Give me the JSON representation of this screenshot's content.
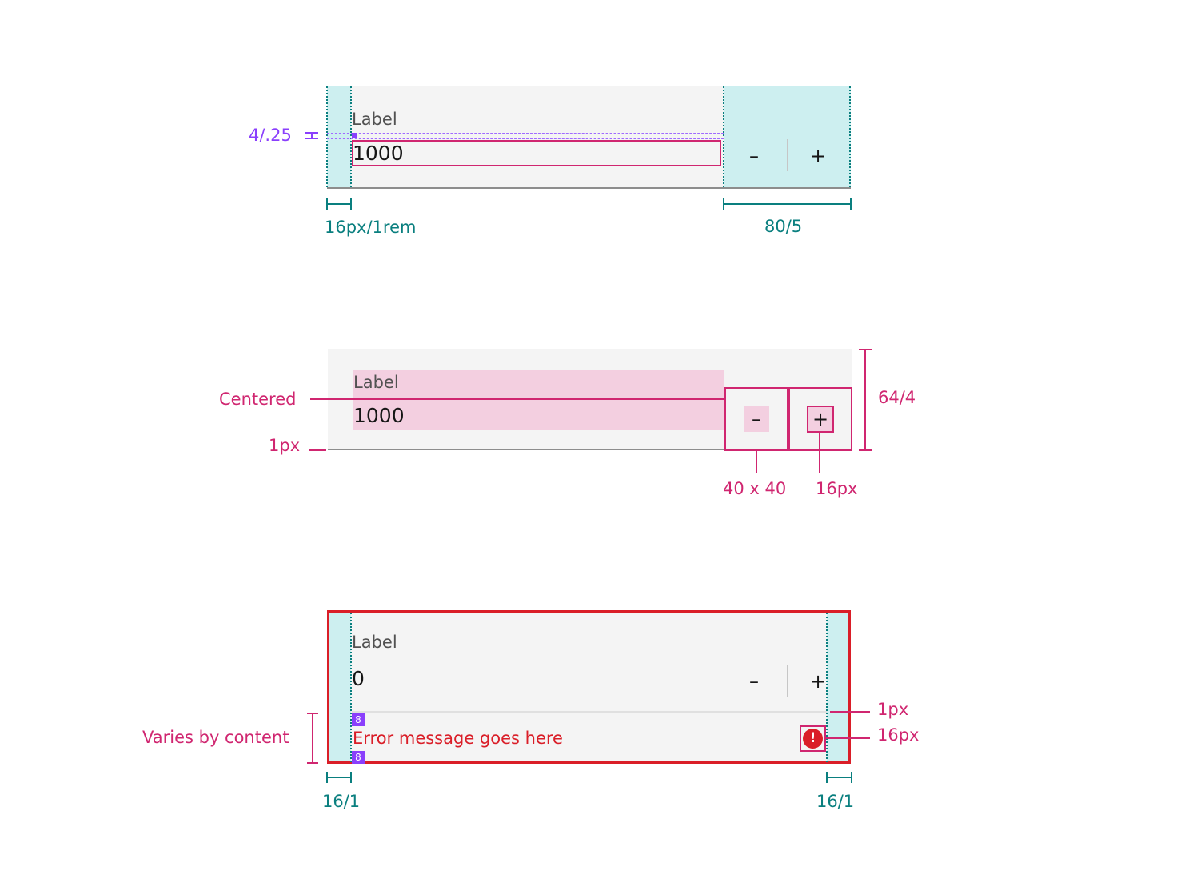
{
  "example1": {
    "label": "Label",
    "value": "1000",
    "decrement_symbol": "–",
    "increment_symbol": "+",
    "spacing_annotation": "4/.25",
    "padding_annotation": "16px/1rem",
    "buttons_width_annotation": "80/5"
  },
  "example2": {
    "label": "Label",
    "value": "1000",
    "decrement_symbol": "–",
    "increment_symbol": "+",
    "centered_annotation": "Centered",
    "border_annotation": "1px",
    "height_annotation": "64/4",
    "button_size_annotation": "40 x 40",
    "icon_size_annotation": "16px"
  },
  "example3": {
    "label": "Label",
    "value": "0",
    "decrement_symbol": "–",
    "increment_symbol": "+",
    "error_message": "Error message goes here",
    "error_icon_symbol": "!",
    "spacing_badge_top": "8",
    "spacing_badge_bottom": "8",
    "varies_annotation": "Varies by content",
    "divider_annotation": "1px",
    "icon_size_annotation": "16px",
    "left_padding_annotation": "16/1",
    "right_padding_annotation": "16/1"
  },
  "colors": {
    "field_background": "#f4f4f4",
    "spacing_teal": "#cdeff0",
    "annotation_teal": "#0a7f7f",
    "annotation_magenta": "#d02670",
    "annotation_purple": "#8a3ffc",
    "error_red": "#da1e28"
  }
}
